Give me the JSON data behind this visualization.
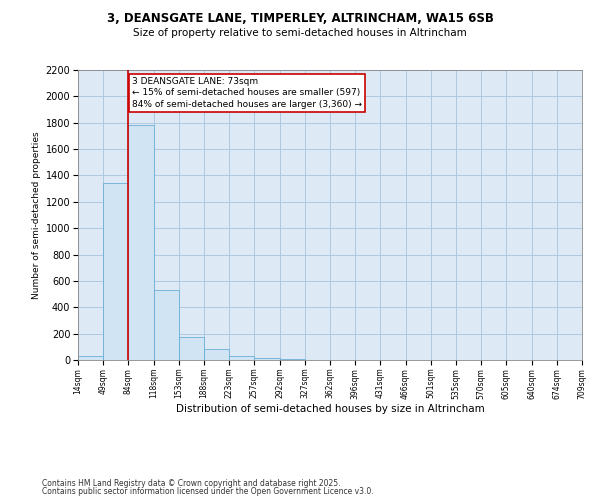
{
  "title1": "3, DEANSGATE LANE, TIMPERLEY, ALTRINCHAM, WA15 6SB",
  "title2": "Size of property relative to semi-detached houses in Altrincham",
  "xlabel": "Distribution of semi-detached houses by size in Altrincham",
  "ylabel": "Number of semi-detached properties",
  "bin_labels": [
    "14sqm",
    "49sqm",
    "84sqm",
    "118sqm",
    "153sqm",
    "188sqm",
    "223sqm",
    "257sqm",
    "292sqm",
    "327sqm",
    "362sqm",
    "396sqm",
    "431sqm",
    "466sqm",
    "501sqm",
    "535sqm",
    "570sqm",
    "605sqm",
    "640sqm",
    "674sqm",
    "709sqm"
  ],
  "counts": [
    28,
    1340,
    1780,
    530,
    175,
    82,
    28,
    17,
    10,
    3,
    1,
    0,
    0,
    0,
    0,
    0,
    0,
    0,
    0,
    0
  ],
  "bar_facecolor": "#d0e4f4",
  "bar_edgecolor": "#6aaed6",
  "annotation_text": "3 DEANSGATE LANE: 73sqm\n← 15% of semi-detached houses are smaller (597)\n84% of semi-detached houses are larger (3,360) →",
  "vline_color": "#cc0000",
  "annotation_box_edgecolor": "#cc0000",
  "annotation_box_facecolor": "#ffffff",
  "ylim": [
    0,
    2200
  ],
  "yticks": [
    0,
    200,
    400,
    600,
    800,
    1000,
    1200,
    1400,
    1600,
    1800,
    2000,
    2200
  ],
  "grid_color": "#adc8e0",
  "bg_color": "#ddeaf6",
  "footer1": "Contains HM Land Registry data © Crown copyright and database right 2025.",
  "footer2": "Contains public sector information licensed under the Open Government Licence v3.0."
}
